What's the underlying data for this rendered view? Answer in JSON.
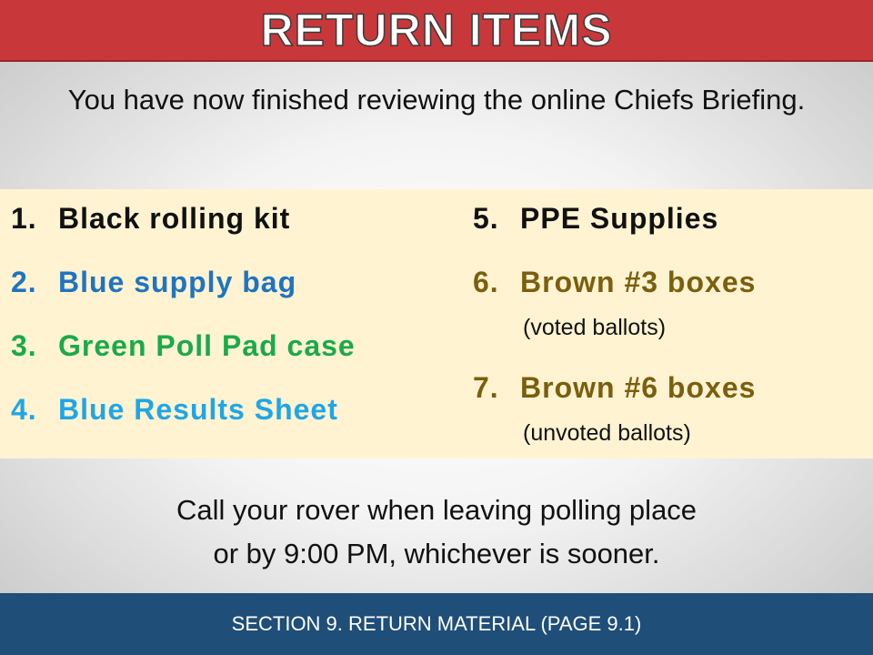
{
  "title": "RETURN ITEMS",
  "intro": "You have now finished reviewing the online Chiefs Briefing.",
  "items_left": [
    {
      "num": "1.",
      "label": "Black rolling kit",
      "color": "#111111"
    },
    {
      "num": "2.",
      "label": "Blue supply bag",
      "color": "#1f74c0"
    },
    {
      "num": "3.",
      "label": "Green Poll Pad case",
      "color": "#1aaa4a"
    },
    {
      "num": "4.",
      "label": "Blue Results Sheet",
      "color": "#1fa6e6"
    }
  ],
  "items_right": [
    {
      "num": "5.",
      "label": "PPE Supplies",
      "color": "#111111"
    },
    {
      "num": "6.",
      "label": "Brown #3 boxes",
      "color": "#7a5f0e",
      "note": "(voted ballots)"
    },
    {
      "num": "7.",
      "label": "Brown #6 boxes",
      "color": "#7a5f0e",
      "note": "(unvoted ballots)"
    }
  ],
  "call_line1": "Call your rover when leaving polling place",
  "call_line2": "or by 9:00 PM, whichever is sooner.",
  "footer": "SECTION 9. RETURN MATERIAL (PAGE 9.1)",
  "colors": {
    "title_bar": "#c8383a",
    "list_panel": "#fff3d2",
    "footer_bar": "#1f4e79"
  }
}
